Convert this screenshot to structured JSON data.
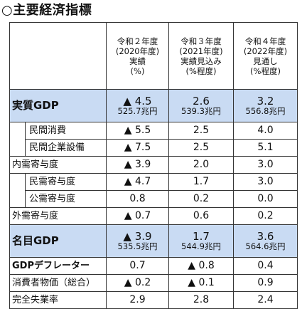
{
  "title": "○主要経済指標",
  "columns": [
    {
      "line1": "令和２年度",
      "line2": "(2020年度)",
      "line3": "実績",
      "line4": "(%)"
    },
    {
      "line1": "令和３年度",
      "line2": "(2021年度)",
      "line3": "実績見込み",
      "line4": "(%程度)"
    },
    {
      "line1": "令和４年度",
      "line2": "(2022年度)",
      "line3": "見通し",
      "line4": "(%程度)"
    }
  ],
  "rows": {
    "real_gdp": {
      "label": "実質GDP",
      "v": [
        "▲ 4.5",
        "2.6",
        "3.2"
      ],
      "s": [
        "525.7兆円",
        "539.3兆円",
        "556.8兆円"
      ]
    },
    "private_consumption": {
      "label": "民間消費",
      "v": [
        "▲ 5.5",
        "2.5",
        "4.0"
      ]
    },
    "private_capex": {
      "label": "民間企業設備",
      "v": [
        "▲ 7.5",
        "2.5",
        "5.1"
      ]
    },
    "domestic_demand": {
      "label": "内需寄与度",
      "v": [
        "▲ 3.9",
        "2.0",
        "3.0"
      ]
    },
    "private_demand": {
      "label": "民需寄与度",
      "v": [
        "▲ 4.7",
        "1.7",
        "3.0"
      ]
    },
    "public_demand": {
      "label": "公需寄与度",
      "v": [
        "0.8",
        "0.2",
        "0.0"
      ]
    },
    "external_demand": {
      "label": "外需寄与度",
      "v": [
        "▲ 0.7",
        "0.6",
        "0.2"
      ]
    },
    "nominal_gdp": {
      "label": "名目GDP",
      "v": [
        "▲ 3.9",
        "1.7",
        "3.6"
      ],
      "s": [
        "535.5兆円",
        "544.9兆円",
        "564.6兆円"
      ]
    },
    "gdp_deflator": {
      "label": "GDPデフレーター",
      "v": [
        "0.7",
        "▲ 0.8",
        "0.4"
      ]
    },
    "cpi": {
      "label": "消費者物価（総合）",
      "v": [
        "▲ 0.2",
        "▲ 0.1",
        "0.9"
      ]
    },
    "unemployment": {
      "label": "完全失業率",
      "v": [
        "2.9",
        "2.8",
        "2.4"
      ]
    }
  }
}
